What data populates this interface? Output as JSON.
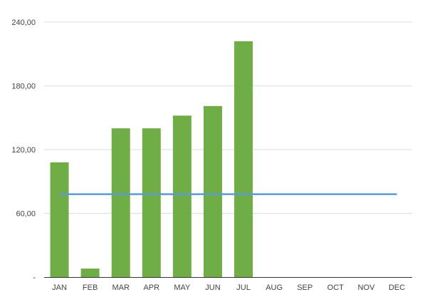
{
  "chart_data": {
    "type": "bar",
    "title": "",
    "xlabel": "",
    "ylabel": "",
    "categories": [
      "JAN",
      "FEB",
      "MAR",
      "APR",
      "MAY",
      "JUN",
      "JUL",
      "AUG",
      "SEP",
      "OCT",
      "NOV",
      "DEC"
    ],
    "series": [
      {
        "type": "bar",
        "color": "#70ad47",
        "values": [
          108,
          8,
          140,
          140,
          152,
          161,
          222,
          null,
          null,
          null,
          null,
          null
        ]
      },
      {
        "type": "line",
        "color": "#5b9bd5",
        "values": [
          78,
          78,
          78,
          78,
          78,
          78,
          78,
          78,
          78,
          78,
          78,
          78
        ]
      }
    ],
    "ylim": [
      0,
      240
    ],
    "yticks": [
      0,
      60,
      120,
      180,
      240
    ],
    "ytick_labels": [
      "-",
      "60,00",
      "120,00",
      "180,00",
      "240,00"
    ],
    "grid": true,
    "legend": "none"
  }
}
